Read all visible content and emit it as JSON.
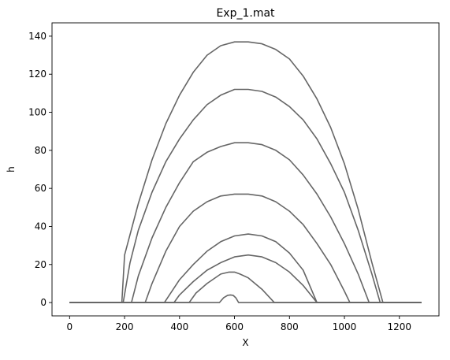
{
  "chart_data": {
    "type": "line",
    "title": "Exp_1.mat",
    "xlabel": "X",
    "ylabel": "h",
    "xlim": [
      -64,
      1344
    ],
    "ylim": [
      -7,
      147
    ],
    "xticks": [
      0,
      200,
      400,
      600,
      800,
      1000,
      1200
    ],
    "yticks": [
      0,
      20,
      40,
      60,
      80,
      100,
      120,
      140
    ],
    "line_color": "#666666",
    "grid": false,
    "series": [
      {
        "x": [
          0,
          190,
          200,
          250,
          300,
          350,
          400,
          450,
          500,
          550,
          600,
          650,
          700,
          750,
          800,
          850,
          900,
          950,
          1000,
          1050,
          1100,
          1140,
          1150,
          1280
        ],
        "y": [
          0,
          0,
          25,
          52,
          75,
          94,
          109,
          121,
          130,
          135,
          137,
          137,
          136,
          133,
          128,
          119,
          107,
          92,
          73,
          49,
          21,
          0,
          0,
          0
        ]
      },
      {
        "x": [
          0,
          195,
          220,
          250,
          300,
          350,
          400,
          450,
          500,
          550,
          600,
          650,
          700,
          750,
          800,
          850,
          900,
          950,
          1000,
          1050,
          1100,
          1130,
          1280
        ],
        "y": [
          0,
          0,
          21,
          38,
          58,
          74,
          86,
          96,
          104,
          109,
          112,
          112,
          111,
          108,
          103,
          96,
          86,
          73,
          58,
          38,
          15,
          0,
          0
        ]
      },
      {
        "x": [
          0,
          225,
          250,
          300,
          350,
          400,
          450,
          500,
          550,
          600,
          650,
          700,
          750,
          800,
          850,
          900,
          950,
          1000,
          1050,
          1090,
          1280
        ],
        "y": [
          0,
          0,
          14,
          34,
          50,
          63,
          74,
          79,
          82,
          84,
          84,
          83,
          80,
          75,
          67,
          57,
          45,
          31,
          15,
          0,
          0
        ]
      },
      {
        "x": [
          0,
          275,
          300,
          350,
          400,
          450,
          500,
          550,
          600,
          650,
          700,
          750,
          800,
          850,
          900,
          950,
          1000,
          1020,
          1280
        ],
        "y": [
          0,
          0,
          10,
          27,
          40,
          48,
          53,
          56,
          57,
          57,
          56,
          53,
          48,
          41,
          31,
          20,
          6,
          0,
          0
        ]
      },
      {
        "x": [
          0,
          345,
          400,
          450,
          500,
          550,
          600,
          650,
          700,
          750,
          800,
          850,
          900,
          1280
        ],
        "y": [
          0,
          0,
          12,
          20,
          27,
          32,
          35,
          36,
          35,
          32,
          26,
          17,
          0,
          0
        ]
      },
      {
        "x": [
          0,
          380,
          400,
          450,
          500,
          550,
          600,
          650,
          700,
          750,
          800,
          850,
          900,
          1280
        ],
        "y": [
          0,
          0,
          4,
          11,
          17,
          21,
          24,
          25,
          24,
          21,
          16,
          9,
          0,
          0
        ]
      },
      {
        "x": [
          0,
          435,
          460,
          500,
          550,
          580,
          600,
          620,
          650,
          700,
          745,
          1280
        ],
        "y": [
          0,
          0,
          5,
          10,
          15,
          16,
          16,
          15,
          13,
          7,
          0,
          0
        ]
      },
      {
        "x": [
          0,
          545,
          560,
          575,
          585,
          595,
          605,
          615,
          1280
        ],
        "y": [
          0,
          0,
          2.5,
          3.8,
          4,
          3.8,
          2.5,
          0,
          0
        ]
      }
    ]
  }
}
